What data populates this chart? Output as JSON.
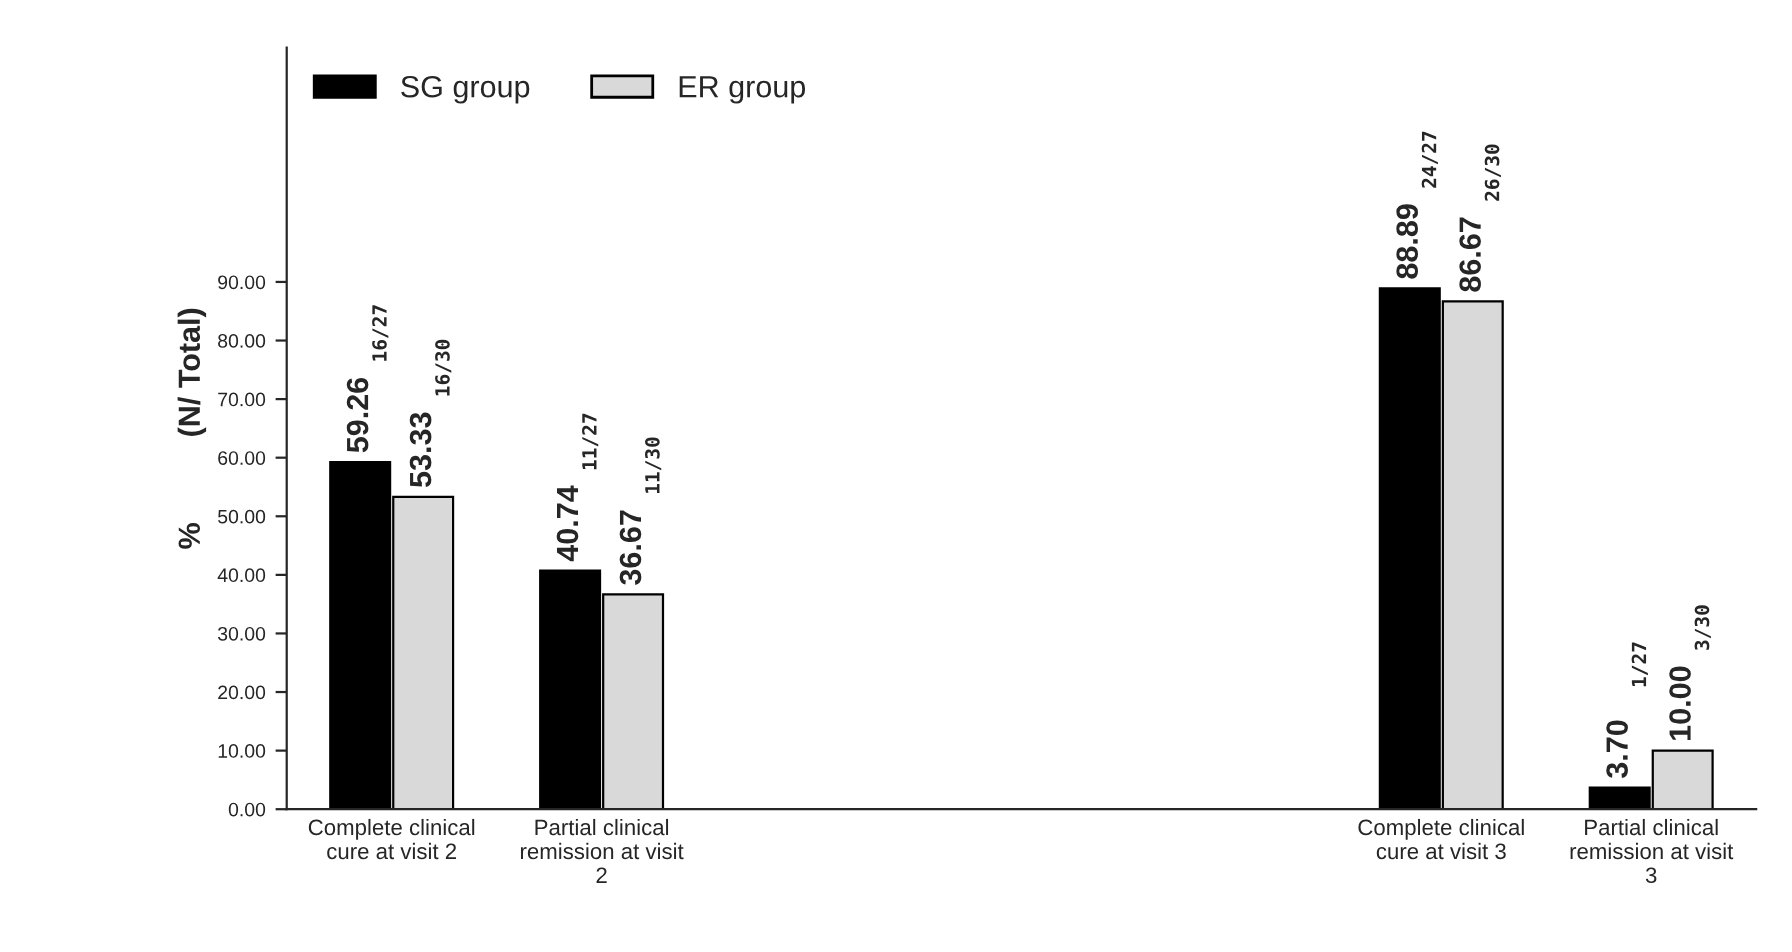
{
  "chart_data": {
    "type": "bar",
    "categories": [
      "Complete clinical cure at visit 2",
      "Partial clinical remission at visit 2",
      null,
      null,
      null,
      "Complete clinical cure at visit 3",
      "Partial clinical remission at visit 3"
    ],
    "series": [
      {
        "name": "SG group",
        "color": "#000000",
        "values": [
          59.26,
          40.74,
          null,
          null,
          null,
          88.89,
          3.7
        ],
        "value_labels": [
          "59.26",
          "40.74",
          null,
          null,
          null,
          "88.89",
          "3.70"
        ]
      },
      {
        "name": "ER group",
        "color": "#d9d9d9",
        "values": [
          53.33,
          36.67,
          null,
          null,
          null,
          86.67,
          10.0
        ],
        "value_labels": [
          "53.33",
          "36.67",
          null,
          null,
          null,
          "86.67",
          "10.00"
        ]
      }
    ],
    "ylabel": "%          (N/ Total)",
    "ylim": [
      0,
      130
    ],
    "yticks": [
      {
        "value": 0,
        "label": "0.00"
      },
      {
        "value": 10,
        "label": "10.00"
      },
      {
        "value": 20,
        "label": "20.00"
      },
      {
        "value": 30,
        "label": "30.00"
      },
      {
        "value": 40,
        "label": "40.00"
      },
      {
        "value": 50,
        "label": "50.00"
      },
      {
        "value": 60,
        "label": "60.00"
      },
      {
        "value": 70,
        "label": "70.00"
      },
      {
        "value": 80,
        "label": "80.00"
      },
      {
        "value": 90,
        "label": "90.00"
      }
    ],
    "annotations": [
      "16/27",
      "16/30",
      "11/27",
      "11/30",
      "24/27",
      "26/30",
      "1/27",
      "3/30"
    ],
    "legend": "top left",
    "grid": false
  }
}
